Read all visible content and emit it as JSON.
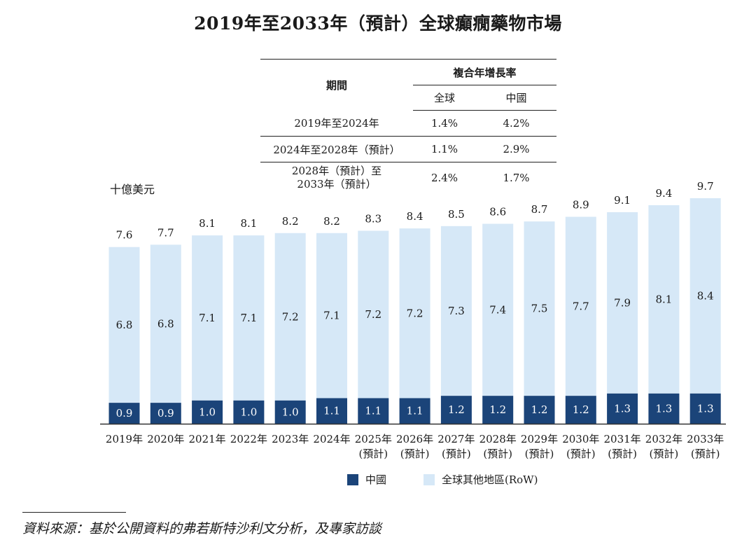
{
  "title": "2019年至2033年（預計）全球癲癇藥物市場",
  "unit_label": "十億美元",
  "table": {
    "period_header": "期間",
    "cagr_header": "複合年增長率",
    "col_global": "全球",
    "col_china": "中國",
    "rows": [
      {
        "period": "2019年至2024年",
        "period2": "",
        "global": "1.4%",
        "china": "4.2%"
      },
      {
        "period": "2024年至2028年（預計）",
        "period2": "",
        "global": "1.1%",
        "china": "2.9%"
      },
      {
        "period": "2028年（預計）至",
        "period2": "2033年（預計）",
        "global": "2.4%",
        "china": "1.7%"
      }
    ]
  },
  "legend": {
    "china": "中國",
    "row": "全球其他地區(RoW)"
  },
  "source": "資料來源：基於公開資料的弗若斯特沙利文分析，及專家訪談",
  "colors": {
    "china": "#1b4479",
    "row": "#d6e8f7",
    "axis": "#333333"
  },
  "chart_data": {
    "type": "bar",
    "stacked": true,
    "categories": [
      "2019年",
      "2020年",
      "2021年",
      "2022年",
      "2023年",
      "2024年",
      "2025年",
      "2026年",
      "2027年",
      "2028年",
      "2029年",
      "2030年",
      "2031年",
      "2032年",
      "2033年"
    ],
    "category_sublabels": [
      "",
      "",
      "",
      "",
      "",
      "",
      "(預計)",
      "(預計)",
      "(預計)",
      "(預計)",
      "(預計)",
      "(預計)",
      "(預計)",
      "(預計)",
      "(預計)"
    ],
    "series": [
      {
        "name": "中國",
        "values": [
          0.9,
          0.9,
          1.0,
          1.0,
          1.0,
          1.1,
          1.1,
          1.1,
          1.2,
          1.2,
          1.2,
          1.2,
          1.3,
          1.3,
          1.3
        ]
      },
      {
        "name": "全球其他地區(RoW)",
        "values": [
          6.8,
          6.8,
          7.1,
          7.1,
          7.2,
          7.1,
          7.2,
          7.2,
          7.3,
          7.4,
          7.5,
          7.7,
          7.9,
          8.1,
          8.4
        ]
      }
    ],
    "totals": [
      7.6,
      7.7,
      8.1,
      8.1,
      8.2,
      8.2,
      8.3,
      8.4,
      8.5,
      8.6,
      8.7,
      8.9,
      9.1,
      9.4,
      9.7
    ],
    "ylabel": "十億美元",
    "ylim": [
      0,
      9.7
    ]
  }
}
